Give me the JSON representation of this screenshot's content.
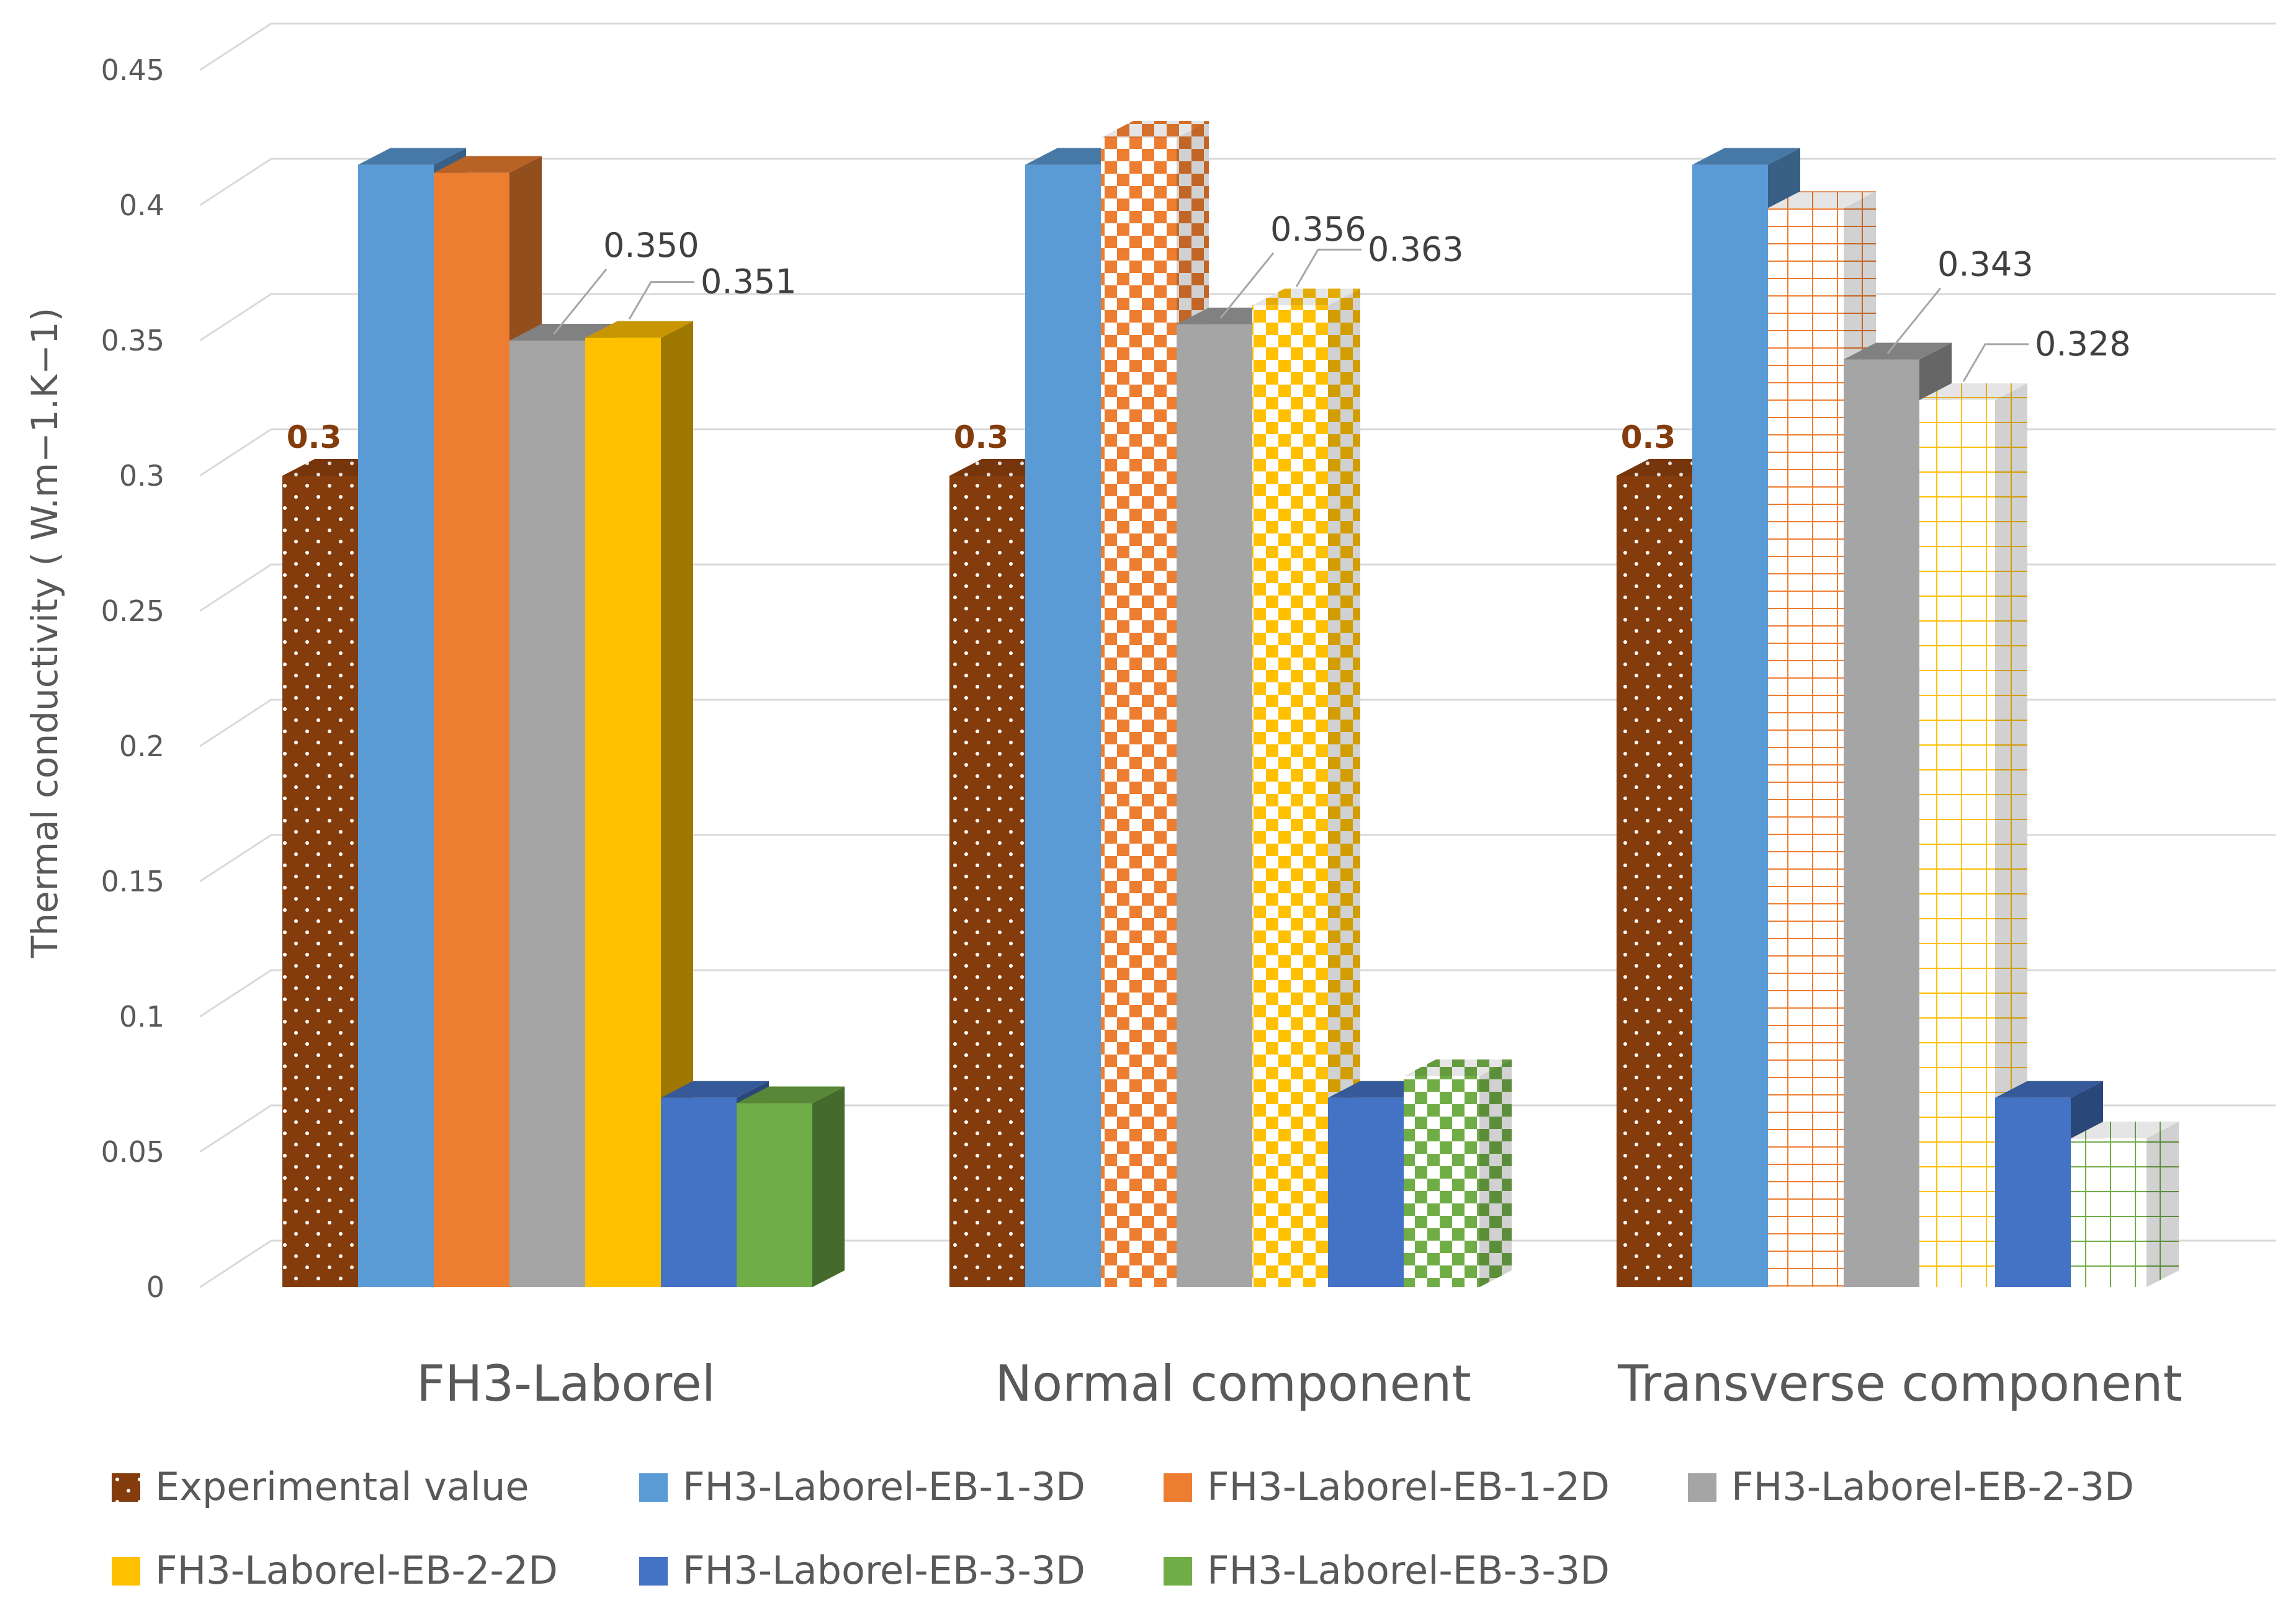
{
  "chart_data": {
    "type": "bar",
    "title": "",
    "xlabel": "",
    "ylabel": "Thermal conductivity ( W.m−1.K−1)",
    "ylim": [
      0,
      0.45
    ],
    "yticks": [
      "0",
      "0.05",
      "0.1",
      "0.15",
      "0.2",
      "0.25",
      "0.3",
      "0.35",
      "0.4",
      "0.45"
    ],
    "grid": true,
    "legend_position": "bottom",
    "categories": [
      "FH3-Laborel",
      "Normal component",
      "Transverse component"
    ],
    "series": [
      {
        "name": "Experimental value",
        "values": [
          0.3,
          0.3,
          0.3
        ],
        "labels": [
          "0.3",
          "0.3",
          "0.3"
        ],
        "color": "#843c0c",
        "pattern": "dots"
      },
      {
        "name": "FH3-Laborel-EB-1-3D",
        "values": [
          0.415,
          0.415,
          0.415
        ],
        "labels": [
          "",
          "",
          ""
        ],
        "color": "#5b9bd5",
        "pattern": "solid"
      },
      {
        "name": "FH3-Laborel-EB-1-2D",
        "values": [
          0.412,
          0.425,
          0.399
        ],
        "labels": [
          "",
          "",
          ""
        ],
        "color": "#ed7d31",
        "pattern": "solid"
      },
      {
        "name": "FH3-Laborel-EB-2-3D",
        "values": [
          0.35,
          0.356,
          0.343
        ],
        "labels": [
          "0.350",
          "0.356",
          "0.343"
        ],
        "color": "#a5a5a5",
        "pattern": "solid"
      },
      {
        "name": "FH3-Laborel-EB-2-2D",
        "values": [
          0.351,
          0.363,
          0.328
        ],
        "labels": [
          "0.351",
          "0.363",
          "0.328"
        ],
        "color": "#ffc000",
        "pattern": "solid"
      },
      {
        "name": "FH3-Laborel-EB-3-3D",
        "values": [
          0.07,
          0.07,
          0.07
        ],
        "labels": [
          "",
          "",
          ""
        ],
        "color": "#4472c4",
        "pattern": "solid"
      },
      {
        "name": "FH3-Laborel-EB-3-3D",
        "values": [
          0.068,
          0.078,
          0.055
        ],
        "labels": [
          "",
          "",
          ""
        ],
        "color": "#70ad47",
        "pattern": "solid"
      }
    ]
  }
}
